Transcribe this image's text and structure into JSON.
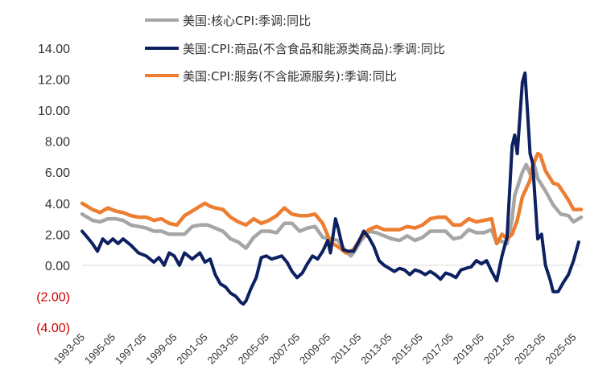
{
  "chart_data": {
    "type": "line",
    "title": "",
    "xlabel": "",
    "ylabel": "",
    "ylim": [
      -4,
      14
    ],
    "y_ticks": [
      {
        "value": 14,
        "label": "14.00"
      },
      {
        "value": 12,
        "label": "12.00"
      },
      {
        "value": 10,
        "label": "10.00"
      },
      {
        "value": 8,
        "label": "8.00"
      },
      {
        "value": 6,
        "label": "6.00"
      },
      {
        "value": 4,
        "label": "4.00"
      },
      {
        "value": 2,
        "label": "2.00"
      },
      {
        "value": 0,
        "label": "0.00"
      },
      {
        "value": -2,
        "label": "(2.00)"
      },
      {
        "value": -4,
        "label": "(4.00)"
      }
    ],
    "x_range": [
      1993.33,
      2025.83
    ],
    "x_ticks": [
      {
        "value": 1993.33,
        "label": "1993-05"
      },
      {
        "value": 1995.33,
        "label": "1995-05"
      },
      {
        "value": 1997.33,
        "label": "1997-05"
      },
      {
        "value": 1999.33,
        "label": "1999-05"
      },
      {
        "value": 2001.33,
        "label": "2001-05"
      },
      {
        "value": 2003.33,
        "label": "2003-05"
      },
      {
        "value": 2005.33,
        "label": "2005-05"
      },
      {
        "value": 2007.33,
        "label": "2007-05"
      },
      {
        "value": 2009.33,
        "label": "2009-05"
      },
      {
        "value": 2011.33,
        "label": "2011-05"
      },
      {
        "value": 2013.33,
        "label": "2013-05"
      },
      {
        "value": 2015.33,
        "label": "2015-05"
      },
      {
        "value": 2017.33,
        "label": "2017-05"
      },
      {
        "value": 2019.33,
        "label": "2019-05"
      },
      {
        "value": 2021.33,
        "label": "2021-05"
      },
      {
        "value": 2023.33,
        "label": "2023-05"
      },
      {
        "value": 2025.33,
        "label": "2025-05"
      }
    ],
    "legend_position": "top-center",
    "series": [
      {
        "name": "美国:核心CPI:季调:同比",
        "color": "#a6a6a6",
        "points": [
          [
            1993.33,
            3.3
          ],
          [
            1994.0,
            2.9
          ],
          [
            1994.5,
            2.8
          ],
          [
            1995.0,
            3.0
          ],
          [
            1995.5,
            3.0
          ],
          [
            1996.0,
            2.9
          ],
          [
            1996.5,
            2.6
          ],
          [
            1997.0,
            2.5
          ],
          [
            1997.5,
            2.4
          ],
          [
            1998.0,
            2.2
          ],
          [
            1998.5,
            2.2
          ],
          [
            1999.0,
            2.0
          ],
          [
            1999.5,
            2.0
          ],
          [
            2000.0,
            2.0
          ],
          [
            2000.5,
            2.5
          ],
          [
            2001.0,
            2.6
          ],
          [
            2001.5,
            2.6
          ],
          [
            2002.0,
            2.4
          ],
          [
            2002.5,
            2.2
          ],
          [
            2003.0,
            1.7
          ],
          [
            2003.5,
            1.5
          ],
          [
            2004.0,
            1.1
          ],
          [
            2004.5,
            1.8
          ],
          [
            2005.0,
            2.2
          ],
          [
            2005.5,
            2.2
          ],
          [
            2006.0,
            2.1
          ],
          [
            2006.5,
            2.7
          ],
          [
            2007.0,
            2.7
          ],
          [
            2007.5,
            2.2
          ],
          [
            2008.0,
            2.4
          ],
          [
            2008.5,
            2.5
          ],
          [
            2009.0,
            1.8
          ],
          [
            2009.5,
            1.7
          ],
          [
            2010.0,
            1.6
          ],
          [
            2010.5,
            0.9
          ],
          [
            2010.83,
            0.6
          ],
          [
            2011.0,
            0.8
          ],
          [
            2011.5,
            1.6
          ],
          [
            2012.0,
            2.2
          ],
          [
            2012.5,
            2.1
          ],
          [
            2013.0,
            1.9
          ],
          [
            2013.5,
            1.7
          ],
          [
            2014.0,
            1.6
          ],
          [
            2014.5,
            1.9
          ],
          [
            2015.0,
            1.6
          ],
          [
            2015.5,
            1.8
          ],
          [
            2016.0,
            2.2
          ],
          [
            2016.5,
            2.2
          ],
          [
            2017.0,
            2.2
          ],
          [
            2017.5,
            1.7
          ],
          [
            2018.0,
            1.8
          ],
          [
            2018.5,
            2.3
          ],
          [
            2019.0,
            2.1
          ],
          [
            2019.5,
            2.1
          ],
          [
            2020.0,
            2.3
          ],
          [
            2020.33,
            1.4
          ],
          [
            2020.5,
            1.6
          ],
          [
            2021.0,
            1.4
          ],
          [
            2021.33,
            3.0
          ],
          [
            2021.5,
            4.5
          ],
          [
            2022.0,
            6.0
          ],
          [
            2022.25,
            6.5
          ],
          [
            2022.5,
            5.9
          ],
          [
            2022.75,
            6.6
          ],
          [
            2023.0,
            5.6
          ],
          [
            2023.5,
            4.8
          ],
          [
            2024.0,
            3.9
          ],
          [
            2024.5,
            3.3
          ],
          [
            2025.0,
            3.2
          ],
          [
            2025.33,
            2.8
          ],
          [
            2025.67,
            3.0
          ],
          [
            2025.83,
            3.1
          ]
        ]
      },
      {
        "name": "美国:CPI:商品(不含食品和能源类商品):季调:同比",
        "color": "#0d2060",
        "points": [
          [
            1993.33,
            2.2
          ],
          [
            1993.67,
            1.8
          ],
          [
            1994.0,
            1.4
          ],
          [
            1994.33,
            0.9
          ],
          [
            1994.67,
            1.7
          ],
          [
            1995.0,
            1.4
          ],
          [
            1995.33,
            1.7
          ],
          [
            1995.67,
            1.4
          ],
          [
            1996.0,
            1.7
          ],
          [
            1996.5,
            1.3
          ],
          [
            1997.0,
            0.8
          ],
          [
            1997.5,
            0.6
          ],
          [
            1998.0,
            0.2
          ],
          [
            1998.33,
            0.5
          ],
          [
            1998.67,
            0.0
          ],
          [
            1999.0,
            0.8
          ],
          [
            1999.33,
            0.6
          ],
          [
            1999.67,
            0.0
          ],
          [
            2000.0,
            0.8
          ],
          [
            2000.5,
            0.4
          ],
          [
            2001.0,
            0.8
          ],
          [
            2001.33,
            0.2
          ],
          [
            2001.67,
            0.4
          ],
          [
            2002.0,
            -0.6
          ],
          [
            2002.33,
            -1.2
          ],
          [
            2002.67,
            -1.4
          ],
          [
            2003.0,
            -1.8
          ],
          [
            2003.33,
            -2.0
          ],
          [
            2003.67,
            -2.4
          ],
          [
            2003.83,
            -2.5
          ],
          [
            2004.0,
            -2.3
          ],
          [
            2004.33,
            -1.5
          ],
          [
            2004.67,
            -0.8
          ],
          [
            2005.0,
            0.5
          ],
          [
            2005.33,
            0.6
          ],
          [
            2005.67,
            0.4
          ],
          [
            2006.0,
            0.5
          ],
          [
            2006.33,
            0.6
          ],
          [
            2006.67,
            0.2
          ],
          [
            2007.0,
            -0.4
          ],
          [
            2007.33,
            -0.8
          ],
          [
            2007.67,
            -0.5
          ],
          [
            2008.0,
            0.1
          ],
          [
            2008.33,
            0.6
          ],
          [
            2008.67,
            0.4
          ],
          [
            2009.0,
            0.9
          ],
          [
            2009.33,
            1.6
          ],
          [
            2009.5,
            0.8
          ],
          [
            2009.83,
            3.0
          ],
          [
            2010.0,
            2.4
          ],
          [
            2010.33,
            1.0
          ],
          [
            2010.67,
            0.9
          ],
          [
            2011.0,
            0.9
          ],
          [
            2011.33,
            1.5
          ],
          [
            2011.67,
            2.2
          ],
          [
            2012.0,
            1.8
          ],
          [
            2012.33,
            1.2
          ],
          [
            2012.67,
            0.3
          ],
          [
            2013.0,
            0.0
          ],
          [
            2013.33,
            -0.2
          ],
          [
            2013.67,
            -0.4
          ],
          [
            2014.0,
            -0.2
          ],
          [
            2014.33,
            -0.3
          ],
          [
            2014.67,
            -0.6
          ],
          [
            2015.0,
            -0.3
          ],
          [
            2015.33,
            -0.4
          ],
          [
            2015.67,
            -0.6
          ],
          [
            2016.0,
            -0.4
          ],
          [
            2016.33,
            -0.6
          ],
          [
            2016.67,
            -0.9
          ],
          [
            2017.0,
            -0.5
          ],
          [
            2017.33,
            -0.6
          ],
          [
            2017.67,
            -0.8
          ],
          [
            2018.0,
            -0.3
          ],
          [
            2018.33,
            -0.2
          ],
          [
            2018.67,
            -0.1
          ],
          [
            2019.0,
            0.3
          ],
          [
            2019.33,
            0.1
          ],
          [
            2019.67,
            0.3
          ],
          [
            2020.0,
            -0.4
          ],
          [
            2020.33,
            -1.0
          ],
          [
            2020.67,
            0.6
          ],
          [
            2021.0,
            1.8
          ],
          [
            2021.33,
            7.7
          ],
          [
            2021.5,
            8.4
          ],
          [
            2021.67,
            7.2
          ],
          [
            2022.0,
            11.8
          ],
          [
            2022.17,
            12.4
          ],
          [
            2022.33,
            10.0
          ],
          [
            2022.5,
            7.2
          ],
          [
            2022.67,
            6.6
          ],
          [
            2023.0,
            1.7
          ],
          [
            2023.25,
            2.0
          ],
          [
            2023.5,
            0.0
          ],
          [
            2023.83,
            -1.0
          ],
          [
            2024.0,
            -1.7
          ],
          [
            2024.33,
            -1.7
          ],
          [
            2024.67,
            -1.1
          ],
          [
            2025.0,
            -0.6
          ],
          [
            2025.33,
            0.3
          ],
          [
            2025.67,
            1.5
          ]
        ]
      },
      {
        "name": "美国:CPI:服务(不含能源服务):季调:同比",
        "color": "#ed7d31",
        "points": [
          [
            1993.33,
            4.0
          ],
          [
            1994.0,
            3.6
          ],
          [
            1994.5,
            3.4
          ],
          [
            1995.0,
            3.7
          ],
          [
            1995.5,
            3.5
          ],
          [
            1996.0,
            3.4
          ],
          [
            1996.5,
            3.2
          ],
          [
            1997.0,
            3.1
          ],
          [
            1997.5,
            3.1
          ],
          [
            1998.0,
            2.9
          ],
          [
            1998.5,
            3.0
          ],
          [
            1999.0,
            2.7
          ],
          [
            1999.5,
            2.6
          ],
          [
            2000.0,
            3.2
          ],
          [
            2000.5,
            3.5
          ],
          [
            2001.0,
            3.8
          ],
          [
            2001.33,
            4.0
          ],
          [
            2001.67,
            3.8
          ],
          [
            2002.0,
            3.7
          ],
          [
            2002.5,
            3.6
          ],
          [
            2003.0,
            3.1
          ],
          [
            2003.5,
            2.8
          ],
          [
            2004.0,
            2.6
          ],
          [
            2004.5,
            3.0
          ],
          [
            2005.0,
            2.7
          ],
          [
            2005.5,
            2.9
          ],
          [
            2006.0,
            3.2
          ],
          [
            2006.5,
            3.7
          ],
          [
            2007.0,
            3.3
          ],
          [
            2007.5,
            3.2
          ],
          [
            2008.0,
            3.2
          ],
          [
            2008.5,
            3.3
          ],
          [
            2009.0,
            2.7
          ],
          [
            2009.5,
            1.5
          ],
          [
            2010.0,
            1.2
          ],
          [
            2010.5,
            0.8
          ],
          [
            2011.0,
            1.0
          ],
          [
            2011.5,
            1.8
          ],
          [
            2012.0,
            2.3
          ],
          [
            2012.5,
            2.5
          ],
          [
            2013.0,
            2.3
          ],
          [
            2013.5,
            2.3
          ],
          [
            2014.0,
            2.3
          ],
          [
            2014.5,
            2.5
          ],
          [
            2015.0,
            2.4
          ],
          [
            2015.5,
            2.6
          ],
          [
            2016.0,
            3.0
          ],
          [
            2016.5,
            3.1
          ],
          [
            2017.0,
            3.1
          ],
          [
            2017.5,
            2.6
          ],
          [
            2018.0,
            2.6
          ],
          [
            2018.5,
            3.0
          ],
          [
            2019.0,
            2.8
          ],
          [
            2019.5,
            2.9
          ],
          [
            2020.0,
            3.0
          ],
          [
            2020.33,
            1.4
          ],
          [
            2020.67,
            2.0
          ],
          [
            2021.0,
            1.7
          ],
          [
            2021.33,
            2.0
          ],
          [
            2021.67,
            2.9
          ],
          [
            2022.0,
            4.4
          ],
          [
            2022.5,
            5.5
          ],
          [
            2022.67,
            6.4
          ],
          [
            2023.0,
            7.2
          ],
          [
            2023.17,
            7.1
          ],
          [
            2023.5,
            6.1
          ],
          [
            2024.0,
            5.3
          ],
          [
            2024.33,
            5.2
          ],
          [
            2024.67,
            4.7
          ],
          [
            2025.0,
            4.2
          ],
          [
            2025.33,
            3.6
          ],
          [
            2025.67,
            3.6
          ],
          [
            2025.83,
            3.6
          ]
        ]
      }
    ]
  }
}
